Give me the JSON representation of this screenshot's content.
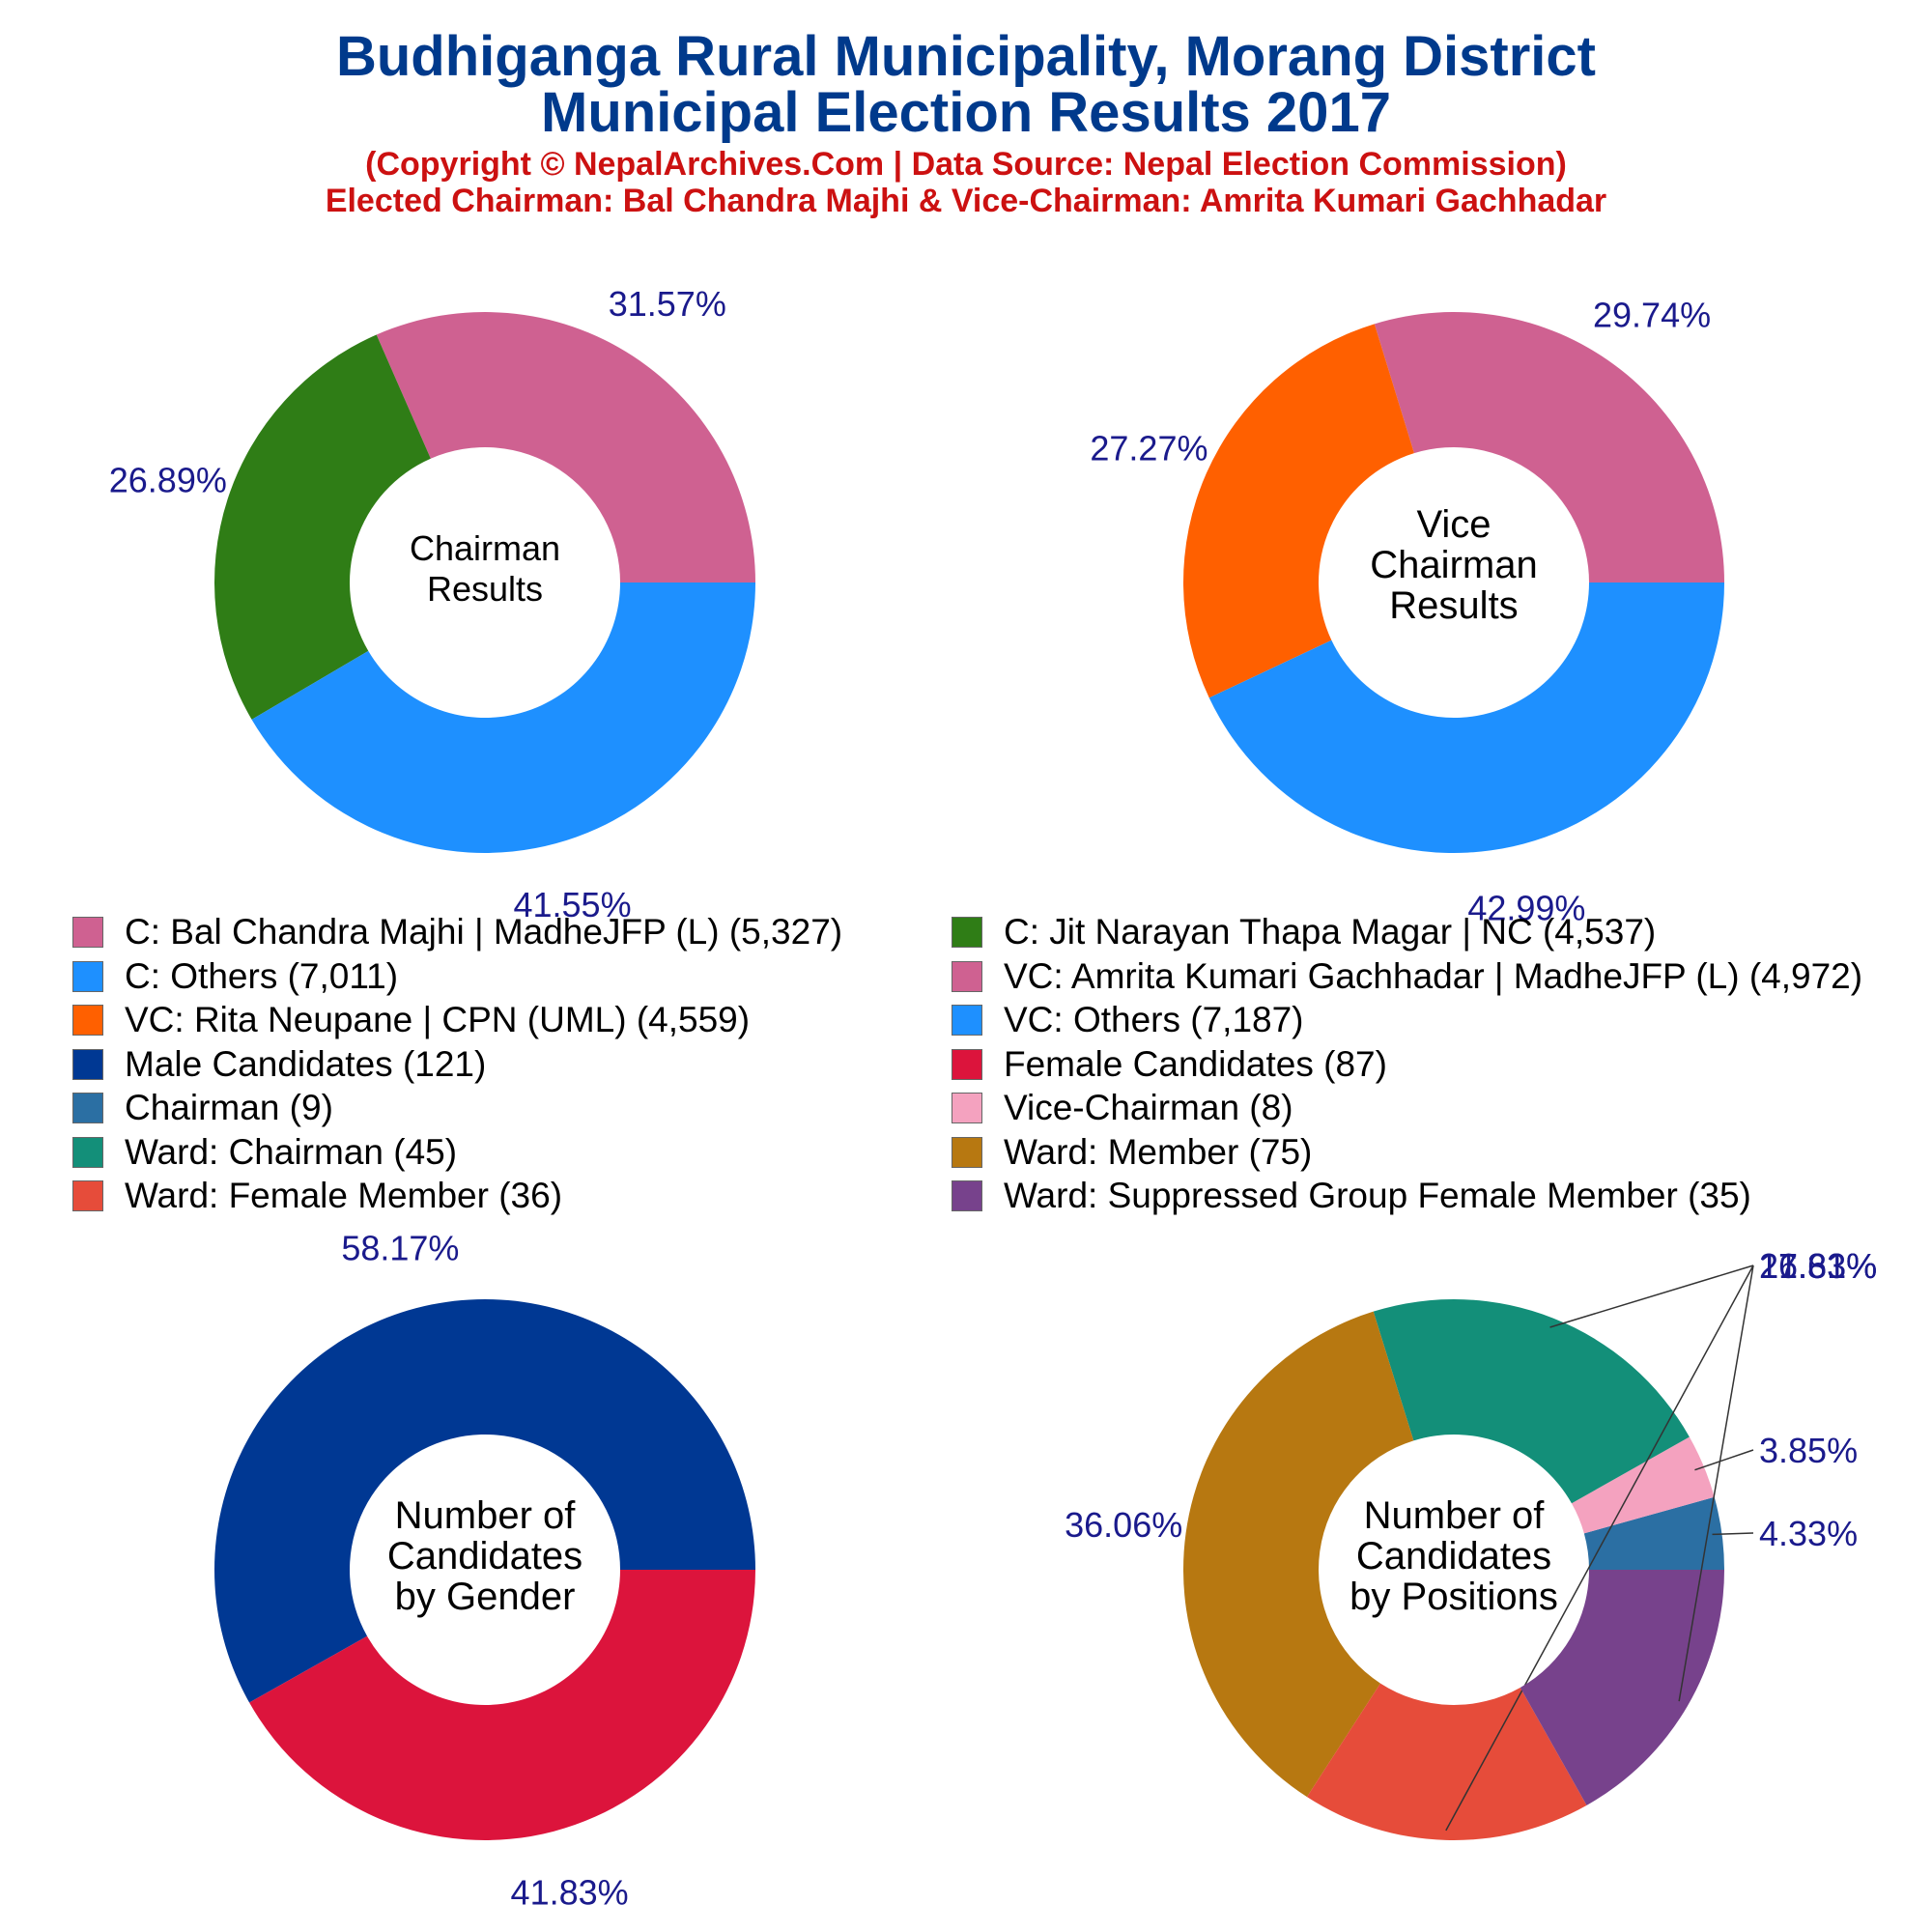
{
  "title": {
    "line1": "Budhiganga Rural Municipality, Morang District",
    "line2": "Municipal Election Results 2017",
    "sub1": "(Copyright © NepalArchives.Com | Data Source: Nepal Election Commission)",
    "sub2": "Elected Chairman: Bal Chandra Majhi & Vice-Chairman: Amrita Kumari Gachhadar"
  },
  "legend": [
    {
      "label": "C: Bal Chandra Majhi | MadheJFP (L) (5,327)",
      "color": "#cf6191"
    },
    {
      "label": "C: Jit Narayan Thapa Magar | NC (4,537)",
      "color": "#2f7d16"
    },
    {
      "label": "C: Others (7,011)",
      "color": "#1e90ff"
    },
    {
      "label": "VC: Amrita Kumari Gachhadar | MadheJFP (L) (4,972)",
      "color": "#cf6191"
    },
    {
      "label": "VC: Rita Neupane | CPN (UML) (4,559)",
      "color": "#ff6000"
    },
    {
      "label": "VC: Others (7,187)",
      "color": "#1e90ff"
    },
    {
      "label": "Male Candidates (121)",
      "color": "#003893"
    },
    {
      "label": "Female Candidates (87)",
      "color": "#dc143c"
    },
    {
      "label": "Chairman (9)",
      "color": "#2b6fa3"
    },
    {
      "label": "Vice-Chairman (8)",
      "color": "#f4a2bf"
    },
    {
      "label": "Ward: Chairman (45)",
      "color": "#138f79"
    },
    {
      "label": "Ward: Member (75)",
      "color": "#b77811"
    },
    {
      "label": "Ward: Female Member (36)",
      "color": "#e64c3a"
    },
    {
      "label": "Ward: Suppressed Group Female Member (35)",
      "color": "#77428c"
    }
  ],
  "chart_data": [
    {
      "type": "pie",
      "center_label": [
        "Chairman",
        "Results"
      ],
      "slices": [
        {
          "name": "C: Bal Chandra Majhi | MadheJFP (L)",
          "value": 5327,
          "pct": "31.57%",
          "color": "#cf6191"
        },
        {
          "name": "C: Jit Narayan Thapa Magar | NC",
          "value": 4537,
          "pct": "26.89%",
          "color": "#2f7d16"
        },
        {
          "name": "C: Others",
          "value": 7011,
          "pct": "41.55%",
          "color": "#1e90ff"
        }
      ]
    },
    {
      "type": "pie",
      "center_label": [
        "Vice",
        "Chairman",
        "Results"
      ],
      "slices": [
        {
          "name": "VC: Amrita Kumari Gachhadar | MadheJFP (L)",
          "value": 4972,
          "pct": "29.74%",
          "color": "#cf6191"
        },
        {
          "name": "VC: Rita Neupane | CPN (UML)",
          "value": 4559,
          "pct": "27.27%",
          "color": "#ff6000"
        },
        {
          "name": "VC: Others",
          "value": 7187,
          "pct": "42.99%",
          "color": "#1e90ff"
        }
      ]
    },
    {
      "type": "pie",
      "center_label": [
        "Number of",
        "Candidates",
        "by Gender"
      ],
      "slices": [
        {
          "name": "Male Candidates",
          "value": 121,
          "pct": "58.17%",
          "color": "#003893"
        },
        {
          "name": "Female Candidates",
          "value": 87,
          "pct": "41.83%",
          "color": "#dc143c"
        }
      ]
    },
    {
      "type": "pie",
      "center_label": [
        "Number of",
        "Candidates",
        "by Positions"
      ],
      "slices": [
        {
          "name": "Chairman",
          "value": 9,
          "pct": "4.33%",
          "color": "#2b6fa3"
        },
        {
          "name": "Vice-Chairman",
          "value": 8,
          "pct": "3.85%",
          "color": "#f4a2bf"
        },
        {
          "name": "Ward: Chairman",
          "value": 45,
          "pct": "21.63%",
          "color": "#138f79"
        },
        {
          "name": "Ward: Member",
          "value": 75,
          "pct": "36.06%",
          "color": "#b77811"
        },
        {
          "name": "Ward: Female Member",
          "value": 36,
          "pct": "17.31%",
          "color": "#e64c3a"
        },
        {
          "name": "Ward: Suppressed Group Female Member",
          "value": 35,
          "pct": "16.83%",
          "color": "#77428c"
        }
      ]
    }
  ]
}
